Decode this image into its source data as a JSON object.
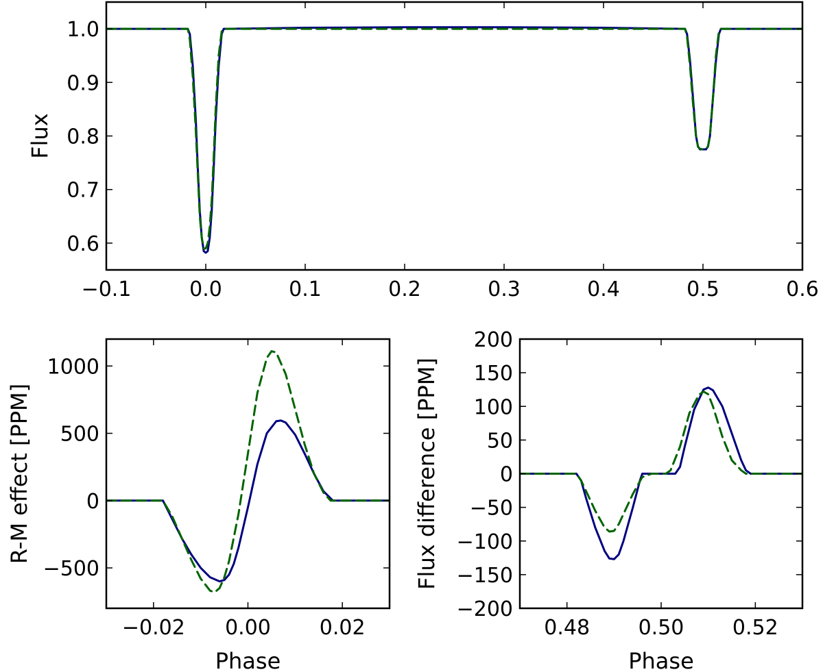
{
  "chart_data": [
    {
      "id": "top",
      "type": "line",
      "title": "",
      "xlabel": "",
      "ylabel": "Flux",
      "xlim": [
        -0.1,
        0.6
      ],
      "ylim": [
        0.55,
        1.05
      ],
      "xticks": [
        -0.1,
        0.0,
        0.1,
        0.2,
        0.3,
        0.4,
        0.5,
        0.6
      ],
      "xtick_labels": [
        "−0.1",
        "0.0",
        "0.1",
        "0.2",
        "0.3",
        "0.4",
        "0.5",
        "0.6"
      ],
      "yticks": [
        0.6,
        0.7,
        0.8,
        0.9,
        1.0
      ],
      "ytick_labels": [
        "0.6",
        "0.7",
        "0.8",
        "0.9",
        "1.0"
      ],
      "grid": false,
      "series": [
        {
          "color": "#000080",
          "dash": "solid",
          "x": [
            -0.1,
            -0.018,
            -0.016,
            -0.013,
            -0.01,
            -0.008,
            -0.006,
            -0.004,
            -0.002,
            0.0,
            0.002,
            0.004,
            0.006,
            0.008,
            0.01,
            0.013,
            0.016,
            0.018,
            0.1,
            0.2,
            0.3,
            0.4,
            0.482,
            0.484,
            0.487,
            0.49,
            0.493,
            0.495,
            0.497,
            0.5,
            0.503,
            0.505,
            0.507,
            0.51,
            0.513,
            0.516,
            0.518,
            0.6
          ],
          "y": [
            1.0,
            1.0,
            0.99,
            0.93,
            0.83,
            0.74,
            0.66,
            0.61,
            0.585,
            0.582,
            0.585,
            0.61,
            0.66,
            0.74,
            0.83,
            0.93,
            0.99,
            1.0,
            1.002,
            1.003,
            1.003,
            1.002,
            1.0,
            0.99,
            0.94,
            0.87,
            0.8,
            0.78,
            0.775,
            0.775,
            0.775,
            0.78,
            0.8,
            0.87,
            0.94,
            0.99,
            1.0,
            1.0
          ]
        },
        {
          "color": "#006400",
          "dash": "dashed",
          "x": [
            -0.1,
            -0.018,
            -0.016,
            -0.013,
            -0.01,
            -0.008,
            -0.006,
            -0.004,
            -0.002,
            0.0,
            0.002,
            0.004,
            0.006,
            0.008,
            0.01,
            0.013,
            0.016,
            0.018,
            0.1,
            0.2,
            0.3,
            0.4,
            0.482,
            0.484,
            0.487,
            0.49,
            0.493,
            0.495,
            0.497,
            0.5,
            0.503,
            0.505,
            0.507,
            0.51,
            0.513,
            0.516,
            0.518,
            0.6
          ],
          "y": [
            1.0,
            1.0,
            0.98,
            0.91,
            0.81,
            0.73,
            0.65,
            0.61,
            0.59,
            0.59,
            0.6,
            0.63,
            0.68,
            0.76,
            0.85,
            0.95,
            0.995,
            1.0,
            1.0,
            1.0,
            1.0,
            1.0,
            1.0,
            0.985,
            0.93,
            0.86,
            0.8,
            0.78,
            0.776,
            0.775,
            0.776,
            0.78,
            0.8,
            0.87,
            0.95,
            0.995,
            1.0,
            1.0
          ]
        }
      ]
    },
    {
      "id": "rm",
      "type": "line",
      "title": "",
      "xlabel": "Phase",
      "ylabel": "R-M effect [PPM]",
      "xlim": [
        -0.03,
        0.03
      ],
      "ylim": [
        -800,
        1200
      ],
      "xticks": [
        -0.02,
        0.0,
        0.02
      ],
      "xtick_labels": [
        "−0.02",
        "0.00",
        "0.02"
      ],
      "yticks": [
        -500,
        0,
        500,
        1000
      ],
      "ytick_labels": [
        "−500",
        "0",
        "500",
        "1000"
      ],
      "grid": false,
      "series": [
        {
          "color": "#000080",
          "dash": "solid",
          "x": [
            -0.03,
            -0.018,
            -0.016,
            -0.014,
            -0.012,
            -0.01,
            -0.008,
            -0.006,
            -0.005,
            -0.004,
            -0.003,
            -0.002,
            0.0,
            0.002,
            0.004,
            0.006,
            0.007,
            0.008,
            0.01,
            0.012,
            0.014,
            0.016,
            0.018,
            0.03
          ],
          "y": [
            0,
            0,
            -140,
            -280,
            -400,
            -500,
            -570,
            -600,
            -590,
            -550,
            -470,
            -350,
            -50,
            270,
            500,
            590,
            595,
            580,
            490,
            350,
            200,
            70,
            0,
            0
          ]
        },
        {
          "color": "#006400",
          "dash": "dashed",
          "x": [
            -0.03,
            -0.018,
            -0.016,
            -0.014,
            -0.012,
            -0.01,
            -0.008,
            -0.007,
            -0.006,
            -0.005,
            -0.004,
            -0.002,
            0.0,
            0.002,
            0.004,
            0.005,
            0.006,
            0.008,
            0.01,
            0.012,
            0.014,
            0.016,
            0.0175,
            0.03
          ],
          "y": [
            0,
            0,
            -120,
            -280,
            -440,
            -580,
            -670,
            -680,
            -650,
            -570,
            -450,
            -100,
            350,
            800,
            1060,
            1110,
            1100,
            940,
            680,
            420,
            200,
            60,
            0,
            0
          ]
        }
      ]
    },
    {
      "id": "diff",
      "type": "line",
      "title": "",
      "xlabel": "Phase",
      "ylabel": "Flux difference [PPM]",
      "xlim": [
        0.47,
        0.53
      ],
      "ylim": [
        -200,
        200
      ],
      "xticks": [
        0.48,
        0.5,
        0.52
      ],
      "xtick_labels": [
        "0.48",
        "0.50",
        "0.52"
      ],
      "yticks": [
        -200,
        -150,
        -100,
        -50,
        0,
        50,
        100,
        150,
        200
      ],
      "ytick_labels": [
        "−200",
        "−150",
        "−100",
        "−50",
        "0",
        "50",
        "100",
        "150",
        "200"
      ],
      "grid": false,
      "series": [
        {
          "color": "#000080",
          "dash": "solid",
          "x": [
            0.47,
            0.482,
            0.483,
            0.484,
            0.486,
            0.488,
            0.489,
            0.49,
            0.491,
            0.492,
            0.494,
            0.4955,
            0.496,
            0.5,
            0.503,
            0.504,
            0.505,
            0.507,
            0.509,
            0.51,
            0.511,
            0.513,
            0.515,
            0.517,
            0.518,
            0.519,
            0.53
          ],
          "y": [
            0,
            0,
            -10,
            -35,
            -80,
            -115,
            -126,
            -127,
            -120,
            -100,
            -50,
            -10,
            0,
            0,
            0,
            10,
            40,
            95,
            125,
            128,
            124,
            100,
            60,
            20,
            5,
            0,
            0
          ]
        },
        {
          "color": "#006400",
          "dash": "dashed",
          "x": [
            0.47,
            0.482,
            0.483,
            0.484,
            0.486,
            0.488,
            0.489,
            0.49,
            0.491,
            0.492,
            0.494,
            0.496,
            0.498,
            0.5,
            0.501,
            0.502,
            0.504,
            0.506,
            0.508,
            0.509,
            0.51,
            0.511,
            0.513,
            0.515,
            0.517,
            0.518,
            0.53
          ],
          "y": [
            0,
            0,
            -10,
            -25,
            -55,
            -80,
            -86,
            -85,
            -75,
            -60,
            -30,
            -5,
            0,
            0,
            0,
            5,
            40,
            90,
            117,
            122,
            118,
            100,
            55,
            20,
            5,
            0,
            0
          ]
        }
      ]
    }
  ]
}
